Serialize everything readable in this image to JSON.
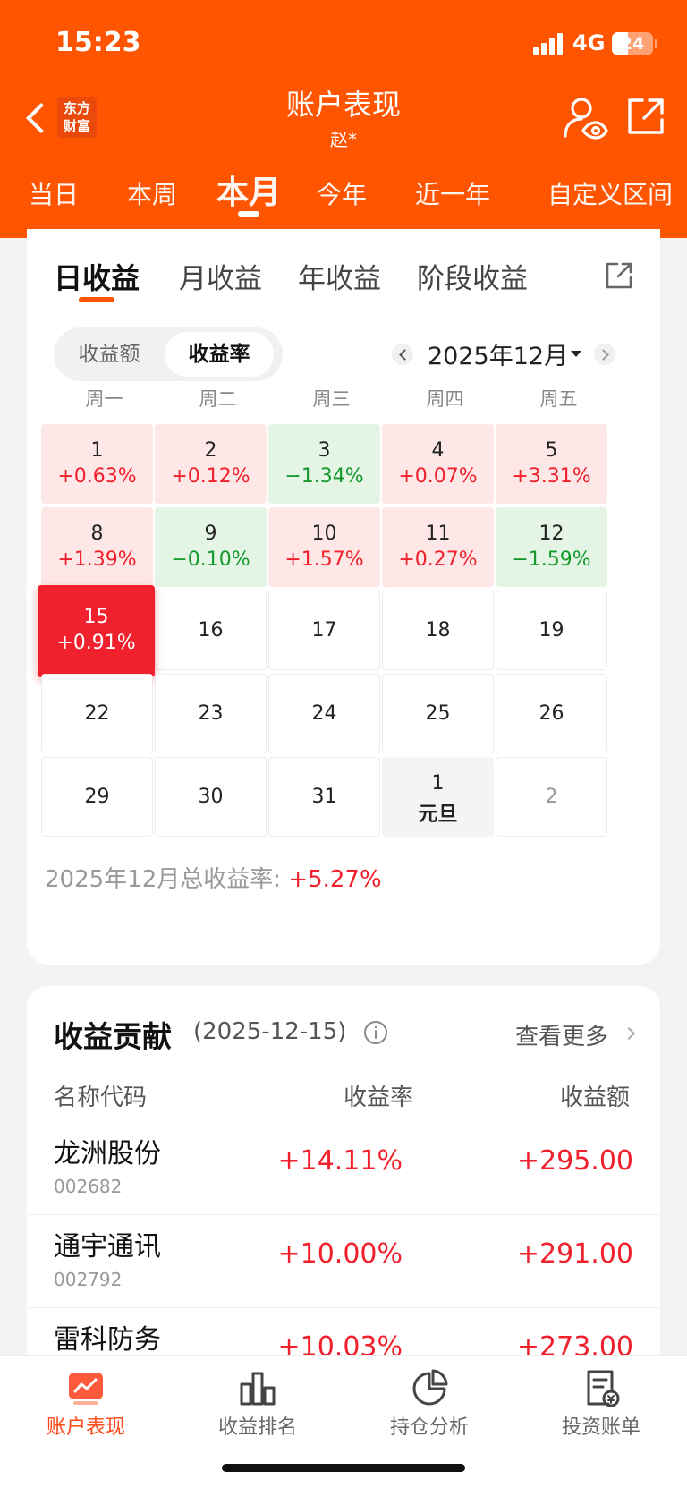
{
  "status_bar": {
    "time": "15:23",
    "network": "4G",
    "battery": "24"
  },
  "header": {
    "logo_line1": "东方",
    "logo_line2": "财富",
    "title": "账户表现",
    "subtitle": "赵*",
    "tabs": [
      {
        "label": "当日"
      },
      {
        "label": "本周"
      },
      {
        "label": "本月"
      },
      {
        "label": "今年"
      },
      {
        "label": "近一年"
      },
      {
        "label": "自定义区间"
      }
    ],
    "active_tab": "本月"
  },
  "calendar": {
    "subtabs": [
      {
        "label": "日收益"
      },
      {
        "label": "月收益"
      },
      {
        "label": "年收益"
      },
      {
        "label": "阶段收益"
      }
    ],
    "toggle": {
      "amount": "收益额",
      "rate": "收益率"
    },
    "month_label": "2025年12月",
    "weekdays": [
      "周一",
      "周二",
      "周三",
      "周四",
      "周五"
    ],
    "weeks": [
      [
        {
          "day": "1",
          "rate": "+0.63%"
        },
        {
          "day": "2",
          "rate": "+0.12%"
        },
        {
          "day": "3",
          "rate": "−1.34%"
        },
        {
          "day": "4",
          "rate": "+0.07%"
        },
        {
          "day": "5",
          "rate": "+3.31%"
        }
      ],
      [
        {
          "day": "8",
          "rate": "+1.39%"
        },
        {
          "day": "9",
          "rate": "−0.10%"
        },
        {
          "day": "10",
          "rate": "+1.57%"
        },
        {
          "day": "11",
          "rate": "+0.27%"
        },
        {
          "day": "12",
          "rate": "−1.59%"
        }
      ],
      [
        {
          "day": "15",
          "rate": "+0.91%"
        },
        {
          "day": "16"
        },
        {
          "day": "17"
        },
        {
          "day": "18"
        },
        {
          "day": "19"
        }
      ],
      [
        {
          "day": "22"
        },
        {
          "day": "23"
        },
        {
          "day": "24"
        },
        {
          "day": "25"
        },
        {
          "day": "26"
        }
      ],
      [
        {
          "day": "29"
        },
        {
          "day": "30"
        },
        {
          "day": "31"
        },
        {
          "day": "1",
          "note": "元旦"
        },
        {
          "day": "2"
        }
      ]
    ],
    "total_label": "2025年12月总收益率:",
    "total_value": "+5.27%",
    "colors": {
      "up": "#f0212c",
      "down": "#169a2e",
      "accent": "#ff5500"
    }
  },
  "contribution": {
    "title": "收益贡献",
    "date": "(2025-12-15)",
    "more": "查看更多",
    "headers": {
      "name": "名称代码",
      "rate": "收益率",
      "amount": "收益额"
    },
    "rows": [
      {
        "name": "龙洲股份",
        "code": "002682",
        "rate": "+14.11%",
        "amount": "+295.00"
      },
      {
        "name": "通宇通讯",
        "code": "002792",
        "rate": "+10.00%",
        "amount": "+291.00"
      },
      {
        "name": "雷科防务",
        "code": "",
        "rate": "+10.03%",
        "amount": "+273.00"
      }
    ]
  },
  "bottom_nav": [
    {
      "label": "账户表现",
      "icon": "chart-trend-icon"
    },
    {
      "label": "收益排名",
      "icon": "bar-chart-icon"
    },
    {
      "label": "持仓分析",
      "icon": "pie-chart-icon"
    },
    {
      "label": "投资账单",
      "icon": "bill-icon"
    }
  ]
}
